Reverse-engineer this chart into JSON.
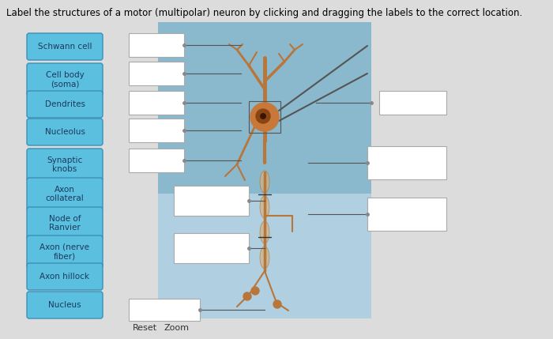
{
  "title": "Label the structures of a motor (multipolar) neuron by clicking and dragging the labels to the correct location.",
  "title_fontsize": 8.5,
  "bg_color": "#dcdcdc",
  "left_labels": [
    "Schwann cell",
    "Cell body\n(soma)",
    "Dendrites",
    "Nucleolus",
    "Synaptic\nknobs",
    "Axon\ncollateral",
    "Node of\nRanvier",
    "Axon (nerve\nfiber)",
    "Axon hillock",
    "Nucleus"
  ],
  "label_bg": "#5bbfe0",
  "label_border": "#3a90b8",
  "label_text_color": "#1a3a5c",
  "label_fontsize": 7.5,
  "blank_box_color": "#ffffff",
  "blank_box_border": "#aaaaaa",
  "neuron_bg_upper": "#8ab8d0",
  "neuron_bg_lower": "#aaccdd",
  "reset_zoom_fontsize": 8,
  "dot_color": "#888888",
  "line_color": "#555555"
}
